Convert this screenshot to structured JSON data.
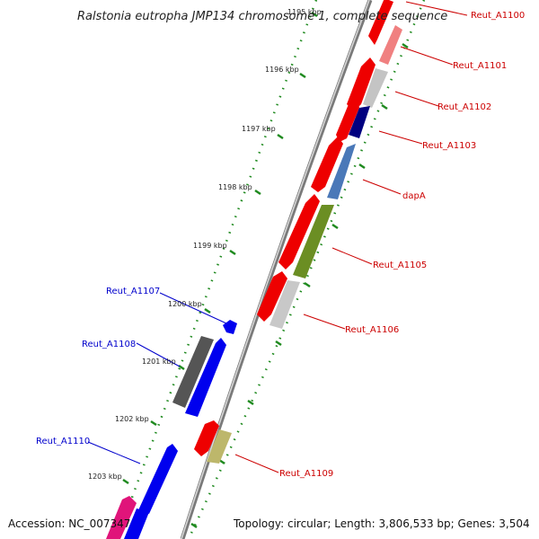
{
  "title": "Ralstonia eutropha JMP134 chromosome 1, complete sequence",
  "accession": "Accession: NC_007347",
  "summary": "Topology: circular; Length: 3,806,533 bp; Genes: 3,504",
  "ticks": [
    "1195 kbp",
    "1196 kbp",
    "1197 kbp",
    "1198 kbp",
    "1199 kbp",
    "1200 kbp",
    "1201 kbp",
    "1202 kbp",
    "1203 kbp"
  ],
  "gene_labels": {
    "reut_a1100": "Reut_A1100",
    "reut_a1101": "Reut_A1101",
    "reut_a1102": "Reut_A1102",
    "reut_a1103": "Reut_A1103",
    "dapa": "dapA",
    "reut_a1105": "Reut_A1105",
    "reut_a1106": "Reut_A1106",
    "reut_a1107": "Reut_A1107",
    "reut_a1108": "Reut_A1108",
    "reut_a1109": "Reut_A1109",
    "reut_a1110": "Reut_A1110"
  },
  "colors": {
    "backbone": "#8c8c8c",
    "cds_forward": "#ee0000",
    "cds_reverse": "#0000ee",
    "tick_green": "#1f8a1f",
    "label_forward": "#cc0000",
    "label_reverse": "#0000cc",
    "gene_gray": "#bdbdbd",
    "gene_dark_gray": "#555555",
    "gene_navy": "#000080",
    "gene_steelblue": "#4a78b8",
    "gene_olive": "#6b8e23",
    "gene_khaki": "#bdb76b",
    "gene_magenta": "#e0147a",
    "gene_pink": "#f08080"
  }
}
